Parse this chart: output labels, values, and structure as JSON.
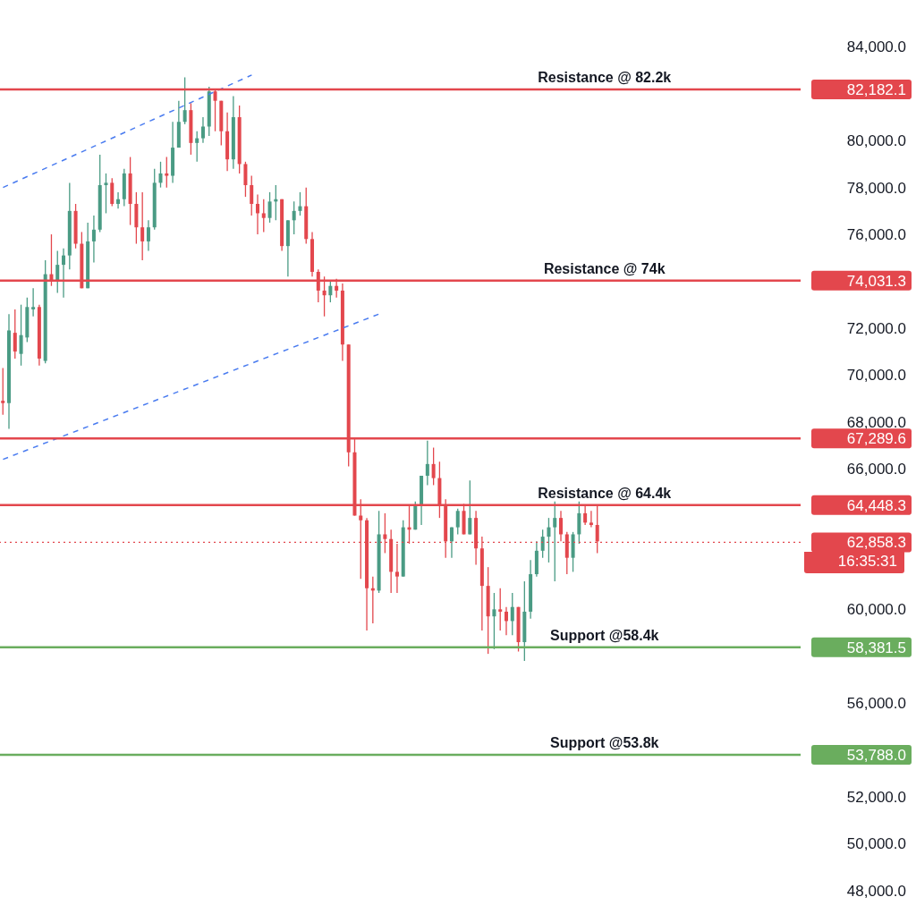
{
  "chart_data": {
    "type": "candlestick",
    "categories": [
      null,
      null,
      null,
      null,
      null,
      null,
      null,
      null,
      null,
      null,
      null,
      null,
      null,
      null,
      null,
      null,
      null,
      null,
      null,
      null,
      null,
      null,
      null,
      null,
      null,
      null,
      null,
      null,
      null,
      null,
      null,
      null,
      null,
      null,
      null,
      null,
      null,
      null,
      null,
      null,
      null,
      null,
      null,
      null,
      null,
      null,
      null,
      null,
      null,
      null,
      null,
      null,
      null,
      null,
      null,
      null,
      null,
      null,
      null,
      null,
      null,
      null,
      null,
      null,
      null,
      null,
      null,
      null,
      null,
      null,
      null,
      null,
      null,
      null,
      null,
      null,
      null,
      null,
      null,
      null,
      null,
      null,
      null,
      null,
      null,
      null,
      null,
      null,
      null,
      null,
      null,
      null,
      null,
      null,
      null,
      null,
      null,
      null,
      null,
      null,
      null,
      null,
      null,
      null,
      null,
      null,
      null,
      null,
      null,
      null,
      null,
      null,
      null,
      null,
      null,
      null,
      null,
      null,
      null,
      null,
      null,
      null,
      null,
      null,
      null,
      null,
      null,
      null,
      null,
      null,
      null,
      null
    ],
    "ohlc": [
      [
        68900,
        70300,
        68300,
        68800
      ],
      [
        68800,
        72600,
        67700,
        71900
      ],
      [
        71800,
        72800,
        70700,
        71000
      ],
      [
        70900,
        73000,
        70400,
        71700
      ],
      [
        71600,
        73300,
        71400,
        72900
      ],
      [
        72800,
        73700,
        72500,
        72900
      ],
      [
        72900,
        73000,
        70400,
        70700
      ],
      [
        70600,
        74900,
        70500,
        74300
      ],
      [
        74300,
        76000,
        73800,
        74000
      ],
      [
        74000,
        75300,
        73500,
        74700
      ],
      [
        74700,
        75400,
        73300,
        75100
      ],
      [
        75100,
        78200,
        74500,
        77000
      ],
      [
        77000,
        77300,
        75400,
        75600
      ],
      [
        75600,
        76100,
        73700,
        73700
      ],
      [
        73700,
        76500,
        73700,
        75700
      ],
      [
        75700,
        76800,
        74800,
        76200
      ],
      [
        76200,
        79400,
        76100,
        78100
      ],
      [
        78100,
        78600,
        76900,
        78200
      ],
      [
        78200,
        78400,
        77200,
        77300
      ],
      [
        77300,
        77800,
        77100,
        77500
      ],
      [
        77500,
        78800,
        77200,
        78600
      ],
      [
        78600,
        79300,
        76400,
        77300
      ],
      [
        77300,
        77800,
        75600,
        76300
      ],
      [
        76300,
        77800,
        74900,
        75700
      ],
      [
        75700,
        76600,
        75300,
        76300
      ],
      [
        76300,
        78800,
        76200,
        78200
      ],
      [
        78200,
        79100,
        78000,
        78600
      ],
      [
        78600,
        79300,
        78000,
        78500
      ],
      [
        78500,
        80800,
        78200,
        79700
      ],
      [
        79700,
        81700,
        79700,
        80800
      ],
      [
        80800,
        82700,
        80700,
        81300
      ],
      [
        81300,
        81600,
        79400,
        79900
      ],
      [
        79900,
        80400,
        79100,
        80100
      ],
      [
        80100,
        81000,
        79900,
        80600
      ],
      [
        80600,
        82300,
        80200,
        82100
      ],
      [
        82100,
        82200,
        80400,
        81700
      ],
      [
        81700,
        81700,
        79800,
        80400
      ],
      [
        80400,
        81200,
        78700,
        79200
      ],
      [
        79200,
        81900,
        78800,
        81000
      ],
      [
        81000,
        81500,
        78600,
        79000
      ],
      [
        79000,
        79100,
        77600,
        78100
      ],
      [
        78100,
        78500,
        76800,
        77300
      ],
      [
        77300,
        77700,
        76000,
        76900
      ],
      [
        76900,
        77500,
        76100,
        76700
      ],
      [
        76700,
        77800,
        76500,
        77400
      ],
      [
        77400,
        78100,
        76600,
        77500
      ],
      [
        77500,
        77500,
        75300,
        75500
      ],
      [
        75500,
        76600,
        74200,
        76600
      ],
      [
        76600,
        77400,
        76000,
        77000
      ],
      [
        77000,
        77800,
        76800,
        77200
      ],
      [
        77200,
        78000,
        75600,
        75800
      ],
      [
        75800,
        76100,
        74200,
        74400
      ],
      [
        74400,
        74500,
        73100,
        73600
      ],
      [
        73600,
        74200,
        72500,
        73400
      ],
      [
        73400,
        74000,
        73100,
        73800
      ],
      [
        73800,
        74100,
        73300,
        73600
      ],
      [
        73600,
        73900,
        70600,
        71300
      ],
      [
        71300,
        71300,
        66100,
        66700
      ],
      [
        66700,
        67300,
        64000,
        64000
      ],
      [
        64000,
        64700,
        61300,
        63800
      ],
      [
        63800,
        63900,
        59100,
        60900
      ],
      [
        60900,
        61400,
        59400,
        60800
      ],
      [
        60800,
        64200,
        60700,
        63200
      ],
      [
        63200,
        64100,
        62400,
        63000
      ],
      [
        63000,
        63400,
        60700,
        61600
      ],
      [
        61600,
        62800,
        60700,
        61400
      ],
      [
        61400,
        63800,
        61400,
        63500
      ],
      [
        63500,
        64400,
        62800,
        63400
      ],
      [
        63400,
        64600,
        63400,
        64400
      ],
      [
        64400,
        65700,
        63600,
        65700
      ],
      [
        65700,
        67200,
        65300,
        66200
      ],
      [
        66200,
        66900,
        65300,
        65600
      ],
      [
        65600,
        66300,
        63900,
        64400
      ],
      [
        64400,
        64700,
        62200,
        62900
      ],
      [
        62900,
        63500,
        62200,
        63500
      ],
      [
        63500,
        64300,
        63200,
        64200
      ],
      [
        64200,
        64500,
        63200,
        63200
      ],
      [
        63200,
        65500,
        63200,
        63900
      ],
      [
        63900,
        64200,
        61900,
        62600
      ],
      [
        62600,
        63100,
        59100,
        61000
      ],
      [
        61000,
        61800,
        58100,
        59700
      ],
      [
        59700,
        60700,
        58300,
        60000
      ],
      [
        60000,
        60900,
        59100,
        59900
      ],
      [
        59900,
        60100,
        58900,
        59500
      ],
      [
        59500,
        60700,
        58900,
        60100
      ],
      [
        60100,
        60100,
        58200,
        58600
      ],
      [
        58600,
        61200,
        57800,
        59900
      ],
      [
        59900,
        62100,
        59600,
        61500
      ],
      [
        61500,
        62900,
        61400,
        62500
      ],
      [
        62500,
        63400,
        62200,
        63100
      ],
      [
        63100,
        63900,
        62000,
        63500
      ],
      [
        63500,
        64600,
        61200,
        63900
      ],
      [
        63900,
        64200,
        62900,
        63200
      ],
      [
        63200,
        63300,
        61500,
        62200
      ],
      [
        62200,
        63300,
        61600,
        63200
      ],
      [
        63200,
        64600,
        62800,
        64100
      ],
      [
        64100,
        64400,
        63600,
        63700
      ],
      [
        63700,
        64200,
        63500,
        63600
      ],
      [
        63600,
        64400,
        62400,
        62900
      ],
      null,
      null,
      null,
      null,
      null,
      null,
      null,
      null,
      null,
      null,
      null,
      null,
      null,
      null,
      null,
      null,
      null,
      null,
      null,
      null,
      null,
      null,
      null,
      null,
      null,
      null,
      null,
      null,
      null,
      null,
      null,
      null,
      null
    ],
    "colors": [
      "#e3474d",
      "#4a9b84",
      "#e3474d",
      "#4a9b84",
      "#4a9b84",
      "#4a9b84",
      "#e3474d",
      "#4a9b84",
      "#e3474d",
      "#4a9b84",
      "#4a9b84",
      "#4a9b84",
      "#e3474d",
      "#e3474d",
      "#4a9b84",
      "#4a9b84",
      "#4a9b84",
      "#4a9b84",
      "#e3474d",
      "#4a9b84",
      "#4a9b84",
      "#e3474d",
      "#e3474d",
      "#e3474d",
      "#4a9b84",
      "#4a9b84",
      "#4a9b84",
      "#e3474d",
      "#4a9b84",
      "#4a9b84",
      "#4a9b84",
      "#e3474d",
      "#4a9b84",
      "#4a9b84",
      "#4a9b84",
      "#e3474d",
      "#e3474d",
      "#e3474d",
      "#4a9b84",
      "#e3474d",
      "#e3474d",
      "#e3474d",
      "#e3474d",
      "#e3474d",
      "#4a9b84",
      "#4a9b84",
      "#e3474d",
      "#4a9b84",
      "#4a9b84",
      "#4a9b84",
      "#e3474d",
      "#e3474d",
      "#e3474d",
      "#e3474d",
      "#4a9b84",
      "#e3474d",
      "#e3474d",
      "#e3474d",
      "#e3474d",
      "#e3474d",
      "#e3474d",
      "#e3474d",
      "#4a9b84",
      "#e3474d",
      "#e3474d",
      "#e3474d",
      "#4a9b84",
      "#e3474d",
      "#4a9b84",
      "#4a9b84",
      "#4a9b84",
      "#e3474d",
      "#e3474d",
      "#e3474d",
      "#4a9b84",
      "#4a9b84",
      "#e3474d",
      "#4a9b84",
      "#e3474d",
      "#e3474d",
      "#e3474d",
      "#4a9b84",
      "#e3474d",
      "#e3474d",
      "#4a9b84",
      "#e3474d",
      "#4a9b84",
      "#4a9b84",
      "#4a9b84",
      "#4a9b84",
      "#4a9b84",
      "#4a9b84",
      "#e3474d",
      "#e3474d",
      "#4a9b84",
      "#4a9b84",
      "#e3474d",
      "#e3474d",
      "#e3474d",
      null,
      null,
      null,
      null,
      null,
      null,
      null,
      null,
      null,
      null,
      null,
      null,
      null,
      null,
      null,
      null,
      null,
      null,
      null,
      null,
      null,
      null,
      null,
      null,
      null,
      null,
      null,
      null,
      null,
      null,
      null,
      null,
      null
    ],
    "series": [
      {
        "type": "line",
        "color": "#4a7cf0",
        "line_style": "dashed",
        "values": [
          78000,
          null,
          null,
          null,
          null,
          null,
          null,
          null,
          null,
          null,
          null,
          null,
          null,
          null,
          null,
          null,
          null,
          null,
          null,
          null,
          null,
          null,
          null,
          null,
          null,
          null,
          null,
          null,
          null,
          null,
          null,
          null,
          null,
          null,
          null,
          null,
          null,
          null,
          null,
          null,
          null,
          82800,
          null,
          null,
          null,
          null,
          null,
          null,
          null,
          null,
          null,
          null,
          null,
          null,
          null,
          null,
          null,
          null,
          null,
          null,
          null,
          null,
          null,
          null,
          null,
          null,
          null,
          null,
          null,
          null,
          null,
          null,
          null,
          null,
          null,
          null,
          null,
          null,
          null,
          null,
          null,
          null,
          null,
          null,
          null,
          null,
          null,
          null,
          null,
          null,
          null,
          null,
          null,
          null,
          null,
          null,
          null,
          null,
          null,
          null,
          null,
          null,
          null,
          null,
          null,
          null,
          null,
          null,
          null,
          null,
          null,
          null,
          null,
          null,
          null,
          null,
          null,
          null,
          null,
          null,
          null,
          null,
          null,
          null,
          null,
          null,
          null,
          null,
          null,
          null,
          null,
          null
        ]
      },
      {
        "type": "line",
        "color": "#4a7cf0",
        "line_style": "dashed",
        "values": [
          66400,
          null,
          null,
          null,
          null,
          null,
          null,
          null,
          null,
          null,
          null,
          null,
          null,
          null,
          null,
          null,
          null,
          null,
          null,
          null,
          null,
          null,
          null,
          null,
          null,
          null,
          null,
          null,
          null,
          null,
          null,
          null,
          null,
          null,
          null,
          null,
          null,
          null,
          null,
          null,
          null,
          null,
          null,
          null,
          null,
          null,
          null,
          null,
          null,
          null,
          null,
          null,
          null,
          null,
          null,
          null,
          null,
          null,
          null,
          null,
          null,
          null,
          72600,
          null,
          null,
          null,
          null,
          null,
          null,
          null,
          null,
          null,
          null,
          null,
          null,
          null,
          null,
          null,
          null,
          null,
          null,
          null,
          null,
          null,
          null,
          null,
          null,
          null,
          null,
          null,
          null,
          null,
          null,
          null,
          null,
          null,
          null,
          null,
          null,
          null,
          null,
          null,
          null,
          null,
          null,
          null,
          null,
          null,
          null,
          null,
          null,
          null,
          null,
          null,
          null,
          null,
          null,
          null,
          null,
          null,
          null,
          null,
          null,
          null,
          null,
          null,
          null,
          null,
          null,
          null,
          null,
          null
        ]
      }
    ],
    "ylim": [
      47000,
      86000
    ],
    "yticks": [
      {
        "value": 48000,
        "label": "48,000.0"
      },
      {
        "value": 50000,
        "label": "50,000.0"
      },
      {
        "value": 52000,
        "label": "52,000.0"
      },
      {
        "value": 56000,
        "label": "56,000.0"
      },
      {
        "value": 60000,
        "label": "60,000.0"
      },
      {
        "value": 66000,
        "label": "66,000.0"
      },
      {
        "value": 68000,
        "label": "68,000.0"
      },
      {
        "value": 70000,
        "label": "70,000.0"
      },
      {
        "value": 72000,
        "label": "72,000.0"
      },
      {
        "value": 76000,
        "label": "76,000.0"
      },
      {
        "value": 78000,
        "label": "78,000.0"
      },
      {
        "value": 80000,
        "label": "80,000.0"
      },
      {
        "value": 84000,
        "label": "84,000.0"
      },
      {
        "value": 82182.1,
        "label": "82,182.1"
      },
      {
        "value": 74031.3,
        "label": "74,031.3"
      },
      {
        "value": 67289.6,
        "label": "67,289.6"
      },
      {
        "value": 64448.3,
        "label": "64,448.3"
      },
      {
        "value": 62858.3,
        "label": "62,858.3"
      },
      {
        "value": 58381.5,
        "label": "58,381.5"
      },
      {
        "value": 53788.0,
        "label": "53,788.0"
      }
    ],
    "tick_labels": "y",
    "grid": false,
    "legend": false,
    "ref_lines": [
      {
        "axis": "y",
        "value": 82182.1,
        "label": "Resistance @ 82.2k",
        "color": "#e3474d"
      },
      {
        "axis": "y",
        "value": 74031.3,
        "label": "Resistance @ 74k",
        "color": "#e3474d"
      },
      {
        "axis": "y",
        "value": 67289.6,
        "color": "#e3474d"
      },
      {
        "axis": "y",
        "value": 64448.3,
        "label": "Resistance @ 64.4k",
        "color": "#e3474d"
      },
      {
        "axis": "y",
        "value": 62858.3,
        "color": "#e3474d",
        "line_style": "dotted"
      },
      {
        "axis": "y",
        "value": 58381.5,
        "label": "Support @58.4k",
        "color": "#6aad5e"
      },
      {
        "axis": "y",
        "value": 53788.0,
        "label": "Support @53.8k",
        "color": "#6aad5e"
      }
    ],
    "annotations": [
      "16:35:31"
    ]
  }
}
